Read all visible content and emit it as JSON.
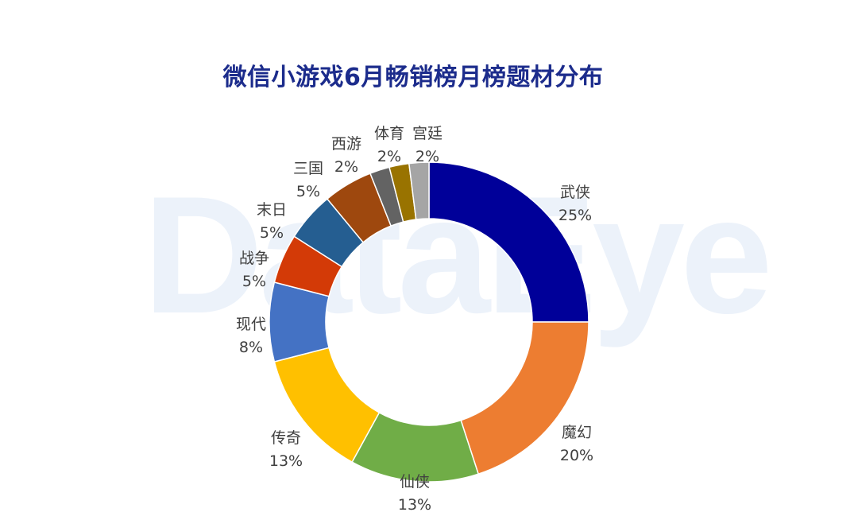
{
  "title": "微信小游戏6月畅销榜月榜题材分布",
  "watermark": "DataEye",
  "chart_data": {
    "type": "pie",
    "donut": true,
    "title": "微信小游戏6月畅销榜月榜题材分布",
    "categories": [
      "武侠",
      "魔幻",
      "仙侠",
      "传奇",
      "现代",
      "战争",
      "末日",
      "三国",
      "西游",
      "体育",
      "宫廷"
    ],
    "values": [
      25,
      20,
      13,
      13,
      8,
      5,
      5,
      5,
      2,
      2,
      2
    ],
    "value_labels": [
      "25%",
      "20%",
      "13%",
      "13%",
      "8%",
      "5%",
      "5%",
      "5%",
      "2%",
      "2%",
      "2%"
    ],
    "colors": [
      "#000099",
      "#ed7d31",
      "#70ad47",
      "#ffc000",
      "#4472c4",
      "#d33a07",
      "#255e91",
      "#9e480e",
      "#636363",
      "#997300",
      "#a5a5a5"
    ]
  }
}
